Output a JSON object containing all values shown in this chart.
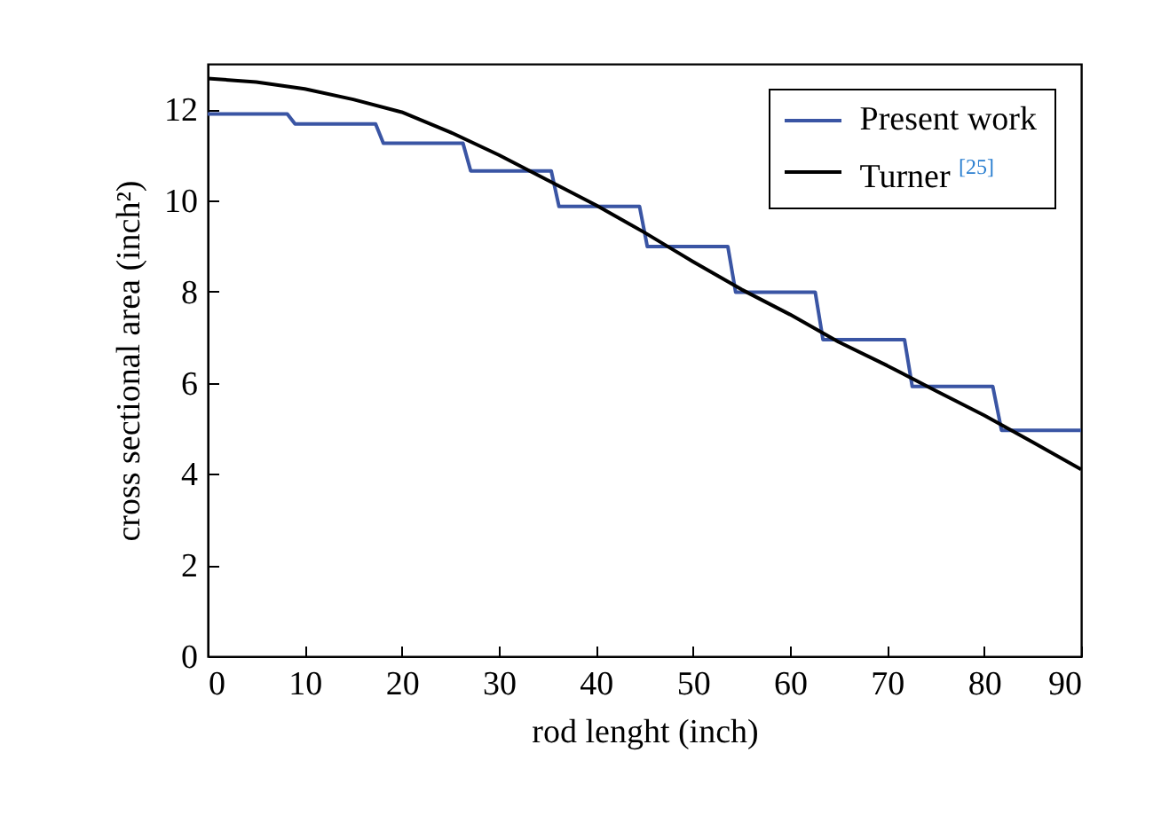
{
  "chart_data": {
    "type": "line",
    "xlabel": "rod lenght (inch)",
    "ylabel": "cross sectional area (inch²)",
    "xlim": [
      0,
      90
    ],
    "xticks": [
      0,
      10,
      20,
      30,
      40,
      50,
      60,
      70,
      80,
      90
    ],
    "ylim": [
      0,
      13
    ],
    "yticks": [
      0,
      2,
      4,
      6,
      8,
      10,
      12
    ],
    "legend": "top right",
    "grid": false,
    "marker": "none",
    "line_style": "solid",
    "series": [
      {
        "name": "Present work",
        "color": "#3a55a4",
        "x": [
          0,
          8.2,
          9,
          17.3,
          18.1,
          26.3,
          27.1,
          35.4,
          36.2,
          44.5,
          45.3,
          53.6,
          54.4,
          62.6,
          63.4,
          71.8,
          72.6,
          80.9,
          81.8,
          90
        ],
        "values": [
          11.9,
          11.9,
          11.68,
          11.68,
          11.26,
          11.26,
          10.65,
          10.65,
          9.87,
          9.87,
          8.99,
          8.99,
          7.99,
          7.99,
          6.95,
          6.95,
          5.92,
          5.92,
          4.96,
          4.96
        ]
      },
      {
        "name": "Turner $^{[25]}$",
        "color": "#000000",
        "x": [
          0,
          5,
          10,
          15,
          20,
          25,
          30,
          35,
          40,
          45,
          50,
          55,
          60,
          65,
          70,
          75,
          80,
          85,
          90
        ],
        "values": [
          12.68,
          12.6,
          12.45,
          12.22,
          11.94,
          11.5,
          11.0,
          10.45,
          9.9,
          9.3,
          8.66,
          8.05,
          7.5,
          6.9,
          6.38,
          5.83,
          5.29,
          4.7,
          4.1
        ]
      }
    ]
  }
}
